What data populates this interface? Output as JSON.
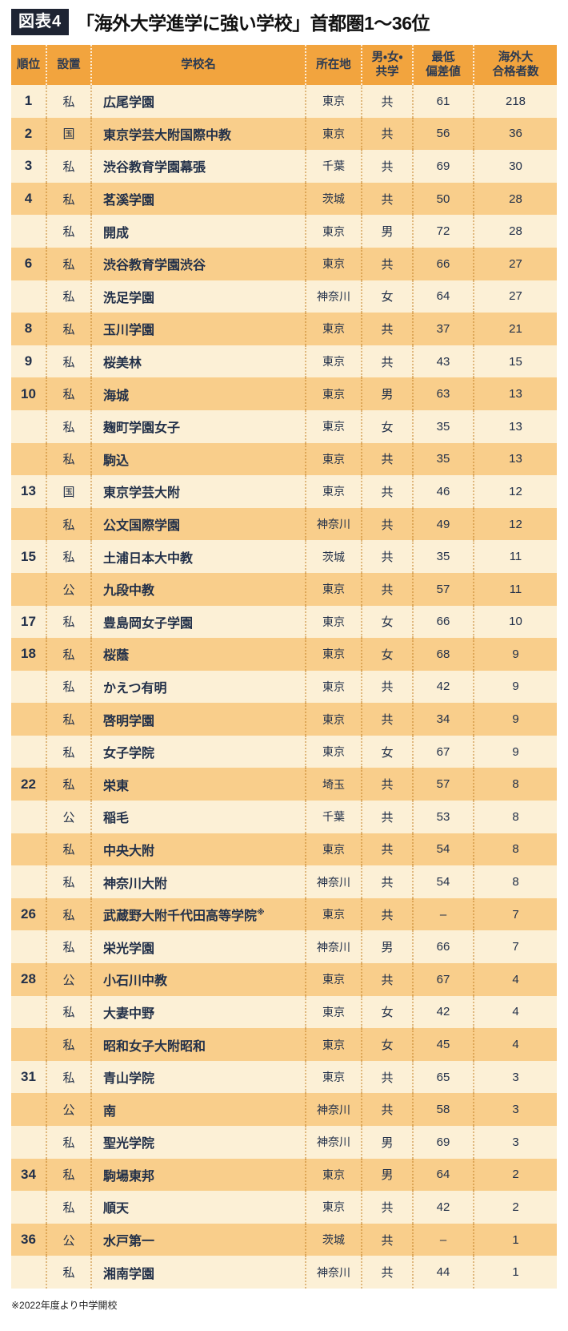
{
  "page": {
    "figure_label": "図表4",
    "title": "「海外大学進学に強い学校」首都圏1〜36位",
    "footnote": "※2022年度より中学開校"
  },
  "colors": {
    "header_bg": "#f2a43e",
    "row_light": "#fcf0d6",
    "row_dark": "#f9ce8b",
    "text_navy": "#223049",
    "figure_label_bg": "#1e2433"
  },
  "chart_data": {
    "type": "table",
    "title": "「海外大学進学に強い学校」首都圏1〜36位",
    "columns": [
      "順位",
      "設置",
      "学校名",
      "所在地",
      "男・女・共学",
      "最低偏差値",
      "海外大合格者数"
    ],
    "columns_display": [
      "順位",
      "設置",
      "学校名",
      "所在地",
      "男・女・\n共学",
      "最低\n偏差値",
      "海外大\n合格者数"
    ],
    "rows": [
      [
        "1",
        "私",
        "広尾学園",
        "東京",
        "共",
        "61",
        "218"
      ],
      [
        "2",
        "国",
        "東京学芸大附国際中教",
        "東京",
        "共",
        "56",
        "36"
      ],
      [
        "3",
        "私",
        "渋谷教育学園幕張",
        "千葉",
        "共",
        "69",
        "30"
      ],
      [
        "4",
        "私",
        "茗溪学園",
        "茨城",
        "共",
        "50",
        "28"
      ],
      [
        "",
        "私",
        "開成",
        "東京",
        "男",
        "72",
        "28"
      ],
      [
        "6",
        "私",
        "渋谷教育学園渋谷",
        "東京",
        "共",
        "66",
        "27"
      ],
      [
        "",
        "私",
        "洗足学園",
        "神奈川",
        "女",
        "64",
        "27"
      ],
      [
        "8",
        "私",
        "玉川学園",
        "東京",
        "共",
        "37",
        "21"
      ],
      [
        "9",
        "私",
        "桜美林",
        "東京",
        "共",
        "43",
        "15"
      ],
      [
        "10",
        "私",
        "海城",
        "東京",
        "男",
        "63",
        "13"
      ],
      [
        "",
        "私",
        "麹町学園女子",
        "東京",
        "女",
        "35",
        "13"
      ],
      [
        "",
        "私",
        "駒込",
        "東京",
        "共",
        "35",
        "13"
      ],
      [
        "13",
        "国",
        "東京学芸大附",
        "東京",
        "共",
        "46",
        "12"
      ],
      [
        "",
        "私",
        "公文国際学園",
        "神奈川",
        "共",
        "49",
        "12"
      ],
      [
        "15",
        "私",
        "土浦日本大中教",
        "茨城",
        "共",
        "35",
        "11"
      ],
      [
        "",
        "公",
        "九段中教",
        "東京",
        "共",
        "57",
        "11"
      ],
      [
        "17",
        "私",
        "豊島岡女子学園",
        "東京",
        "女",
        "66",
        "10"
      ],
      [
        "18",
        "私",
        "桜蔭",
        "東京",
        "女",
        "68",
        "9"
      ],
      [
        "",
        "私",
        "かえつ有明",
        "東京",
        "共",
        "42",
        "9"
      ],
      [
        "",
        "私",
        "啓明学園",
        "東京",
        "共",
        "34",
        "9"
      ],
      [
        "",
        "私",
        "女子学院",
        "東京",
        "女",
        "67",
        "9"
      ],
      [
        "22",
        "私",
        "栄東",
        "埼玉",
        "共",
        "57",
        "8"
      ],
      [
        "",
        "公",
        "稲毛",
        "千葉",
        "共",
        "53",
        "8"
      ],
      [
        "",
        "私",
        "中央大附",
        "東京",
        "共",
        "54",
        "8"
      ],
      [
        "",
        "私",
        "神奈川大附",
        "神奈川",
        "共",
        "54",
        "8"
      ],
      [
        "26",
        "私",
        "武蔵野大附千代田高等学院※",
        "東京",
        "共",
        "–",
        "7"
      ],
      [
        "",
        "私",
        "栄光学園",
        "神奈川",
        "男",
        "66",
        "7"
      ],
      [
        "28",
        "公",
        "小石川中教",
        "東京",
        "共",
        "67",
        "4"
      ],
      [
        "",
        "私",
        "大妻中野",
        "東京",
        "女",
        "42",
        "4"
      ],
      [
        "",
        "私",
        "昭和女子大附昭和",
        "東京",
        "女",
        "45",
        "4"
      ],
      [
        "31",
        "私",
        "青山学院",
        "東京",
        "共",
        "65",
        "3"
      ],
      [
        "",
        "公",
        "南",
        "神奈川",
        "共",
        "58",
        "3"
      ],
      [
        "",
        "私",
        "聖光学院",
        "神奈川",
        "男",
        "69",
        "3"
      ],
      [
        "34",
        "私",
        "駒場東邦",
        "東京",
        "男",
        "64",
        "2"
      ],
      [
        "",
        "私",
        "順天",
        "東京",
        "共",
        "42",
        "2"
      ],
      [
        "36",
        "公",
        "水戸第一",
        "茨城",
        "共",
        "–",
        "1"
      ],
      [
        "",
        "私",
        "湘南学園",
        "神奈川",
        "共",
        "44",
        "1"
      ]
    ]
  }
}
